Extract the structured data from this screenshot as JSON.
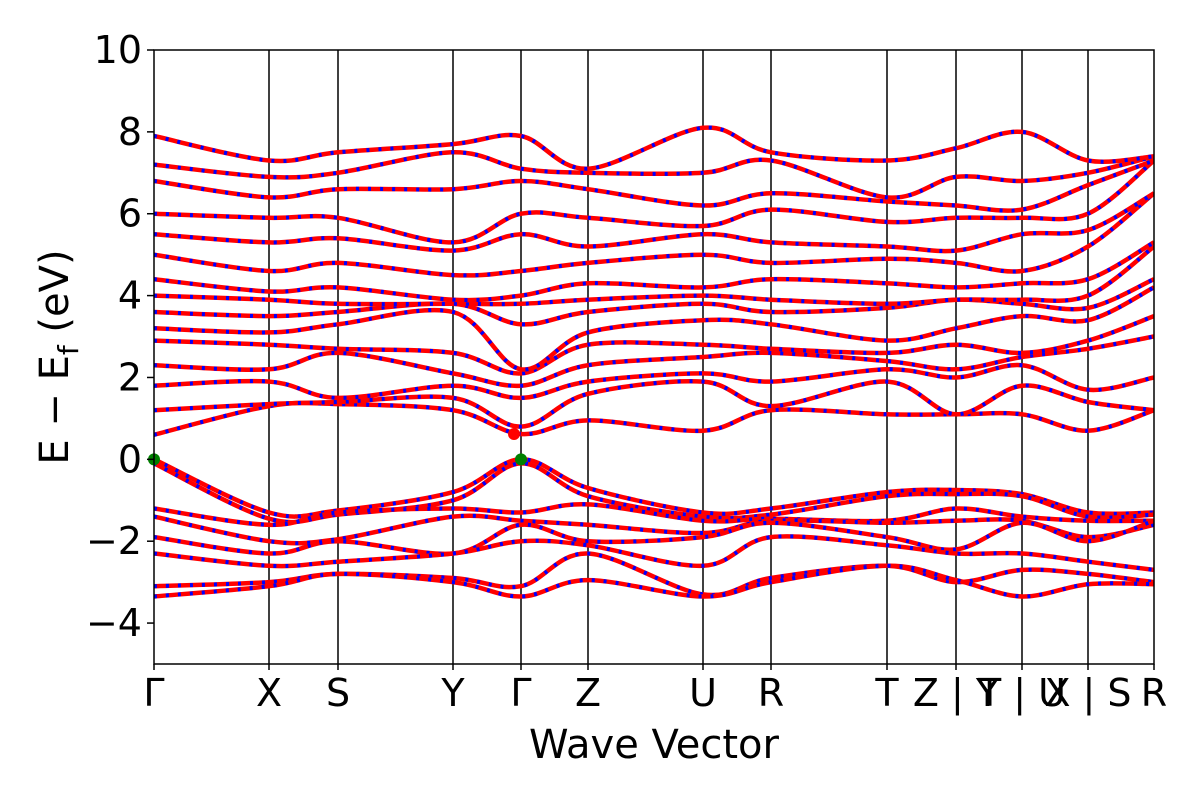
{
  "chart_data": {
    "type": "line",
    "title": "",
    "xlabel": "Wave Vector",
    "ylabel_main": "E − E",
    "ylabel_sub": "f",
    "ylabel_unit": " (eV)",
    "ylim": [
      -5,
      10
    ],
    "yticks": [
      -4,
      -2,
      0,
      2,
      4,
      6,
      8,
      10
    ],
    "ytick_labels": [
      "−4",
      "−2",
      "0",
      "2",
      "4",
      "6",
      "8",
      "10"
    ],
    "grid": false,
    "legend": "none",
    "kpath": [
      {
        "label": "Γ",
        "x": 0.0
      },
      {
        "label": "X",
        "x": 1.15
      },
      {
        "label": "S",
        "x": 1.84
      },
      {
        "label": "Y",
        "x": 2.99
      },
      {
        "label": "Γ",
        "x": 3.67
      },
      {
        "label": "Z",
        "x": 4.34
      },
      {
        "label": "U",
        "x": 5.49
      },
      {
        "label": "R",
        "x": 6.17
      },
      {
        "label": "T",
        "x": 7.33
      },
      {
        "label": "Z | Y",
        "x": 8.02
      },
      {
        "label": "T | U",
        "x": 8.68
      },
      {
        "label": "X | S",
        "x": 9.34
      },
      {
        "label": "R",
        "x": 10.0
      }
    ],
    "colors": {
      "spin_up": "#ff0000",
      "spin_down": "#0000ff",
      "vbm": "#008000",
      "cbm": "#ff0000"
    },
    "series": [
      {
        "band": "v1",
        "x": [
          0,
          1.15,
          1.84,
          2.99,
          3.67,
          4.34,
          5.49,
          6.17,
          7.33,
          8.02,
          8.68,
          9.34,
          10.0
        ],
        "y": [
          0.0,
          -1.3,
          -1.25,
          -0.8,
          0.0,
          -0.7,
          -1.3,
          -1.2,
          -0.8,
          -0.75,
          -0.85,
          -1.3,
          -1.3
        ]
      },
      {
        "band": "v2",
        "x": [
          0,
          1.15,
          1.84,
          2.99,
          3.67,
          4.34,
          5.49,
          6.17,
          7.33,
          8.02,
          8.68,
          9.34,
          10.0
        ],
        "y": [
          -0.1,
          -1.45,
          -1.35,
          -1.0,
          -0.1,
          -0.9,
          -1.4,
          -1.35,
          -0.9,
          -0.85,
          -0.9,
          -1.4,
          -1.35
        ]
      },
      {
        "band": "v3",
        "x": [
          0,
          1.15,
          1.84,
          2.99,
          3.67,
          4.34,
          5.49,
          6.17,
          7.33,
          8.02,
          8.68,
          9.34,
          10.0
        ],
        "y": [
          -1.2,
          -1.6,
          -1.3,
          -1.2,
          -1.3,
          -1.1,
          -1.5,
          -1.45,
          -1.5,
          -1.2,
          -1.4,
          -1.5,
          -1.5
        ]
      },
      {
        "band": "v4",
        "x": [
          0,
          1.15,
          1.84,
          2.99,
          3.67,
          4.34,
          5.49,
          6.17,
          7.33,
          8.02,
          8.68,
          9.34,
          10.0
        ],
        "y": [
          -1.4,
          -2.0,
          -1.95,
          -1.4,
          -1.5,
          -1.6,
          -1.8,
          -1.5,
          -1.55,
          -1.5,
          -1.5,
          -1.9,
          -1.6
        ]
      },
      {
        "band": "v5",
        "x": [
          0,
          1.15,
          1.84,
          2.99,
          3.67,
          4.34,
          5.49,
          6.17,
          7.33,
          8.02,
          8.68,
          9.34,
          10.0
        ],
        "y": [
          -1.9,
          -2.3,
          -2.0,
          -2.3,
          -1.6,
          -2.0,
          -1.9,
          -1.55,
          -1.9,
          -2.2,
          -1.55,
          -2.0,
          -1.5
        ]
      },
      {
        "band": "v6",
        "x": [
          0,
          1.15,
          1.84,
          2.99,
          3.67,
          4.34,
          5.49,
          6.17,
          7.33,
          8.02,
          8.68,
          9.34,
          10.0
        ],
        "y": [
          -2.3,
          -2.6,
          -2.5,
          -2.3,
          -2.0,
          -2.1,
          -2.6,
          -1.9,
          -2.1,
          -2.3,
          -2.3,
          -2.5,
          -2.7
        ]
      },
      {
        "band": "v7",
        "x": [
          0,
          1.15,
          1.84,
          2.99,
          3.67,
          4.34,
          5.49,
          6.17,
          7.33,
          8.02,
          8.68,
          9.34,
          10.0
        ],
        "y": [
          -3.1,
          -3.0,
          -2.8,
          -2.9,
          -3.1,
          -2.3,
          -3.3,
          -2.9,
          -2.6,
          -3.0,
          -2.7,
          -2.8,
          -3.0
        ]
      },
      {
        "band": "v8",
        "x": [
          0,
          1.15,
          1.84,
          2.99,
          3.67,
          4.34,
          5.49,
          6.17,
          7.33,
          8.02,
          8.68,
          9.34,
          10.0
        ],
        "y": [
          -3.35,
          -3.1,
          -2.8,
          -3.0,
          -3.35,
          -2.95,
          -3.35,
          -3.0,
          -2.6,
          -2.95,
          -3.35,
          -3.05,
          -3.05
        ]
      },
      {
        "band": "c1",
        "x": [
          0,
          1.15,
          1.84,
          2.99,
          3.67,
          4.34,
          5.49,
          6.17,
          7.33,
          8.02,
          8.68,
          9.34,
          10.0
        ],
        "y": [
          0.6,
          1.3,
          1.35,
          1.2,
          0.62,
          0.95,
          0.7,
          1.2,
          1.1,
          1.1,
          1.1,
          0.7,
          1.2
        ]
      },
      {
        "band": "c2",
        "x": [
          0,
          1.15,
          1.84,
          2.99,
          3.67,
          4.34,
          5.49,
          6.17,
          7.33,
          8.02,
          8.68,
          9.34,
          10.0
        ],
        "y": [
          1.2,
          1.35,
          1.4,
          1.5,
          0.8,
          1.6,
          1.9,
          1.3,
          1.9,
          1.1,
          1.8,
          1.4,
          1.2
        ]
      },
      {
        "band": "c3",
        "x": [
          0,
          1.15,
          1.84,
          2.99,
          3.67,
          4.34,
          5.49,
          6.17,
          7.33,
          8.02,
          8.68,
          9.34,
          10.0
        ],
        "y": [
          1.8,
          1.9,
          1.5,
          1.8,
          1.5,
          1.9,
          2.1,
          1.9,
          2.2,
          2.0,
          2.3,
          1.7,
          2.0
        ]
      },
      {
        "band": "c4",
        "x": [
          0,
          1.15,
          1.84,
          2.99,
          3.67,
          4.34,
          5.49,
          6.17,
          7.33,
          8.02,
          8.68,
          9.34,
          10.0
        ],
        "y": [
          2.3,
          2.2,
          2.6,
          2.1,
          1.8,
          2.3,
          2.5,
          2.6,
          2.4,
          2.2,
          2.5,
          2.7,
          3.0
        ]
      },
      {
        "band": "c5",
        "x": [
          0,
          1.15,
          1.84,
          2.99,
          3.67,
          4.34,
          5.49,
          6.17,
          7.33,
          8.02,
          8.68,
          9.34,
          10.0
        ],
        "y": [
          2.9,
          2.8,
          2.7,
          2.6,
          2.1,
          2.8,
          2.8,
          2.7,
          2.6,
          2.8,
          2.6,
          2.9,
          3.5
        ]
      },
      {
        "band": "c6",
        "x": [
          0,
          1.15,
          1.84,
          2.99,
          3.67,
          4.34,
          5.49,
          6.17,
          7.33,
          8.02,
          8.68,
          9.34,
          10.0
        ],
        "y": [
          3.2,
          3.1,
          3.3,
          3.6,
          2.2,
          3.1,
          3.4,
          3.3,
          2.9,
          3.2,
          3.5,
          3.4,
          4.2
        ]
      },
      {
        "band": "c7",
        "x": [
          0,
          1.15,
          1.84,
          2.99,
          3.67,
          4.34,
          5.49,
          6.17,
          7.33,
          8.02,
          8.68,
          9.34,
          10.0
        ],
        "y": [
          3.6,
          3.5,
          3.6,
          3.8,
          3.3,
          3.6,
          3.8,
          3.6,
          3.7,
          3.9,
          3.8,
          3.7,
          4.4
        ]
      },
      {
        "band": "c8",
        "x": [
          0,
          1.15,
          1.84,
          2.99,
          3.67,
          4.34,
          5.49,
          6.17,
          7.33,
          8.02,
          8.68,
          9.34,
          10.0
        ],
        "y": [
          4.0,
          3.9,
          3.8,
          3.8,
          3.8,
          3.9,
          4.0,
          3.9,
          3.8,
          3.9,
          3.9,
          4.0,
          5.2
        ]
      },
      {
        "band": "c9",
        "x": [
          0,
          1.15,
          1.84,
          2.99,
          3.67,
          4.34,
          5.49,
          6.17,
          7.33,
          8.02,
          8.68,
          9.34,
          10.0
        ],
        "y": [
          4.4,
          4.1,
          4.2,
          3.9,
          4.0,
          4.3,
          4.2,
          4.4,
          4.3,
          4.2,
          4.3,
          4.4,
          5.3
        ]
      },
      {
        "band": "c10",
        "x": [
          0,
          1.15,
          1.84,
          2.99,
          3.67,
          4.34,
          5.49,
          6.17,
          7.33,
          8.02,
          8.68,
          9.34,
          10.0
        ],
        "y": [
          5.0,
          4.6,
          4.8,
          4.5,
          4.6,
          4.8,
          5.0,
          4.8,
          4.9,
          4.8,
          4.6,
          5.2,
          6.5
        ]
      },
      {
        "band": "c11",
        "x": [
          0,
          1.15,
          1.84,
          2.99,
          3.67,
          4.34,
          5.49,
          6.17,
          7.33,
          8.02,
          8.68,
          9.34,
          10.0
        ],
        "y": [
          5.5,
          5.3,
          5.4,
          5.1,
          5.5,
          5.2,
          5.5,
          5.3,
          5.2,
          5.1,
          5.5,
          5.6,
          6.5
        ]
      },
      {
        "band": "c12",
        "x": [
          0,
          1.15,
          1.84,
          2.99,
          3.67,
          4.34,
          5.49,
          6.17,
          7.33,
          8.02,
          8.68,
          9.34,
          10.0
        ],
        "y": [
          6.0,
          5.9,
          5.9,
          5.3,
          6.0,
          5.9,
          5.7,
          6.1,
          5.8,
          5.9,
          5.9,
          6.0,
          7.3
        ]
      },
      {
        "band": "c13",
        "x": [
          0,
          1.15,
          1.84,
          2.99,
          3.67,
          4.34,
          5.49,
          6.17,
          7.33,
          8.02,
          8.68,
          9.34,
          10.0
        ],
        "y": [
          6.8,
          6.4,
          6.6,
          6.6,
          6.8,
          6.6,
          6.2,
          6.5,
          6.3,
          6.2,
          6.1,
          6.7,
          7.3
        ]
      },
      {
        "band": "c14",
        "x": [
          0,
          1.15,
          1.84,
          2.99,
          3.67,
          4.34,
          5.49,
          6.17,
          7.33,
          8.02,
          8.68,
          9.34,
          10.0
        ],
        "y": [
          7.2,
          6.9,
          7.0,
          7.5,
          7.1,
          7.0,
          7.0,
          7.3,
          6.4,
          6.9,
          6.8,
          7.0,
          7.4
        ]
      },
      {
        "band": "c15",
        "x": [
          0,
          1.15,
          1.84,
          2.99,
          3.67,
          4.34,
          5.49,
          6.17,
          7.33,
          8.02,
          8.68,
          9.34,
          10.0
        ],
        "y": [
          7.9,
          7.3,
          7.5,
          7.7,
          7.9,
          7.1,
          8.1,
          7.5,
          7.3,
          7.6,
          8.0,
          7.3,
          7.4
        ]
      }
    ],
    "markers": [
      {
        "kind": "vbm",
        "x": 0.0,
        "y": 0.0
      },
      {
        "kind": "vbm",
        "x": 3.67,
        "y": 0.0
      },
      {
        "kind": "cbm",
        "x": 3.6,
        "y": 0.62
      }
    ]
  }
}
